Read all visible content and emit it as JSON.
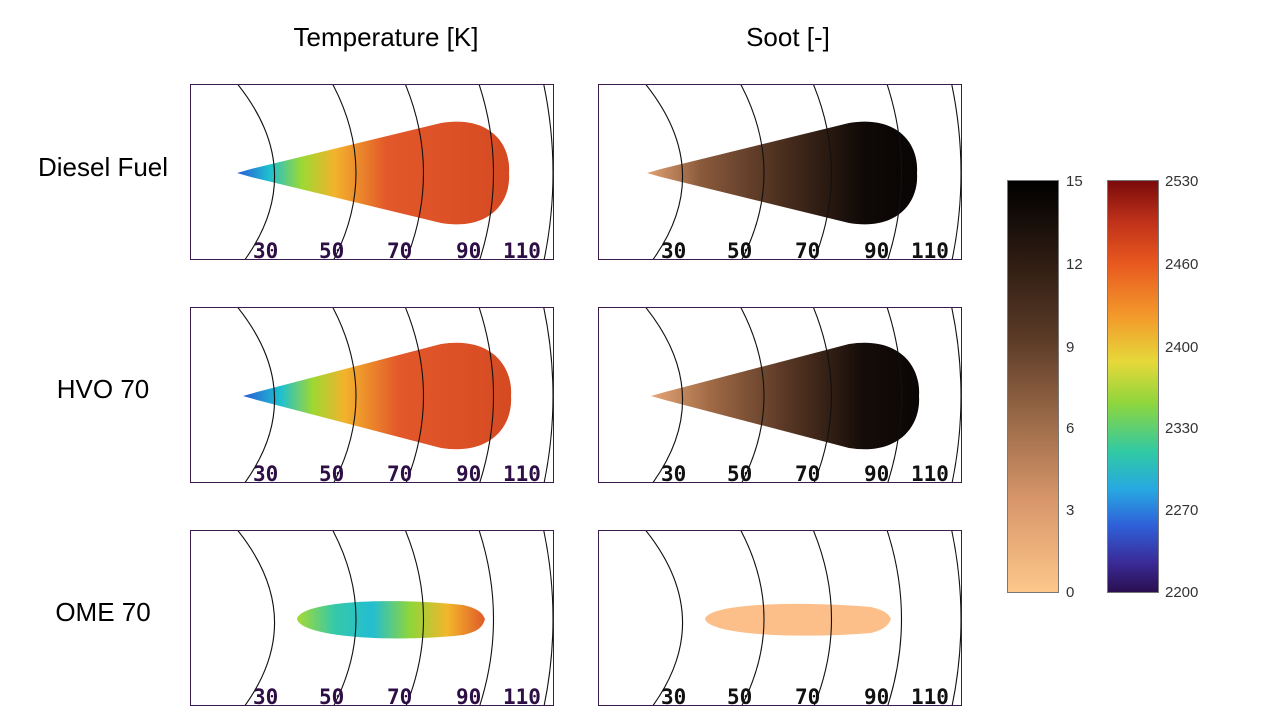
{
  "columns": {
    "temperature": "Temperature [K]",
    "soot": "Soot [-]"
  },
  "rows": [
    {
      "label": "Diesel Fuel"
    },
    {
      "label": "HVO 70"
    },
    {
      "label": "OME 70"
    }
  ],
  "axis_labels": [
    "30",
    "50",
    "70",
    "90",
    "110"
  ],
  "soot_colorbar": {
    "ticks": [
      "15",
      "12",
      "9",
      "6",
      "3",
      "0"
    ],
    "min": 0,
    "max": 15
  },
  "temp_colorbar": {
    "ticks": [
      "2530",
      "2460",
      "2400",
      "2330",
      "2270",
      "2200"
    ],
    "min": 2200,
    "max": 2530
  },
  "colors": {
    "frame": "#3b1a4e",
    "label": "#2e0f45",
    "arc": "#111111"
  }
}
